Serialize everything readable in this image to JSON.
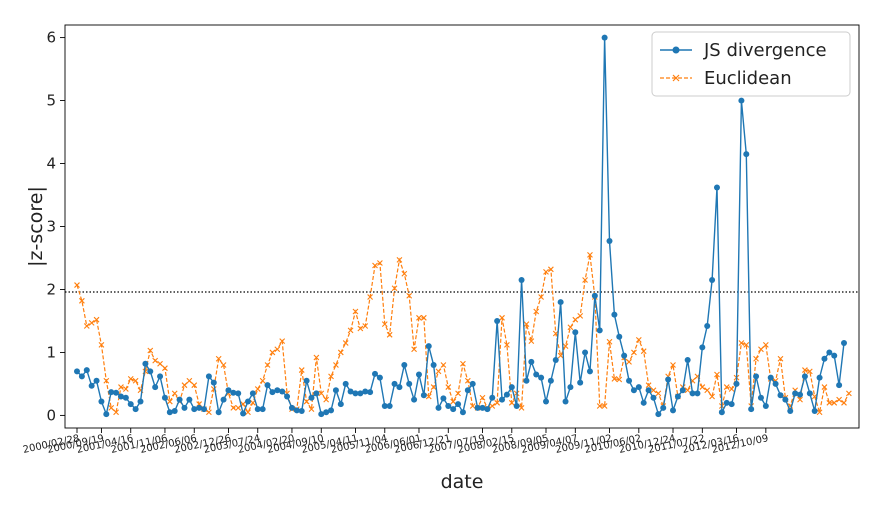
{
  "chart_data": {
    "type": "line",
    "xlabel": "date",
    "ylabel": "|z-score|",
    "ylim": [
      -0.2,
      6.2
    ],
    "yticks": [
      0,
      1,
      2,
      3,
      4,
      5,
      6
    ],
    "threshold": 1.96,
    "legend_position": "top-right",
    "xticks": [
      {
        "i": 0,
        "label": "2000/02/28"
      },
      {
        "i": 5,
        "label": "2000/09/19"
      },
      {
        "i": 11,
        "label": "2001/04/16"
      },
      {
        "i": 18,
        "label": "2001/11/06"
      },
      {
        "i": 24,
        "label": "2002/06/06"
      },
      {
        "i": 31,
        "label": "2002/12/26"
      },
      {
        "i": 37,
        "label": "2003/07/24"
      },
      {
        "i": 44,
        "label": "2004/02/20"
      },
      {
        "i": 50,
        "label": "2004/09/10"
      },
      {
        "i": 57,
        "label": "2005/04/11"
      },
      {
        "i": 63,
        "label": "2005/11/04"
      },
      {
        "i": 70,
        "label": "2006/06/01"
      },
      {
        "i": 76,
        "label": "2006/12/21"
      },
      {
        "i": 83,
        "label": "2007/07/19"
      },
      {
        "i": 89,
        "label": "2008/02/15"
      },
      {
        "i": 96,
        "label": "2008/09/05"
      },
      {
        "i": 102,
        "label": "2009/04/07"
      },
      {
        "i": 109,
        "label": "2009/11/02"
      },
      {
        "i": 115,
        "label": "2010/06/02"
      },
      {
        "i": 122,
        "label": "2010/12/24"
      },
      {
        "i": 128,
        "label": "2011/07/22"
      },
      {
        "i": 135,
        "label": "2012/03/16"
      },
      {
        "i": 141,
        "label": "2012/10/09"
      }
    ],
    "series": [
      {
        "name": "JS divergence",
        "color": "#1f77b4",
        "marker": "circle",
        "linestyle": "solid",
        "values": [
          0.7,
          0.62,
          0.72,
          0.47,
          0.55,
          0.22,
          0.02,
          0.37,
          0.36,
          0.3,
          0.28,
          0.18,
          0.1,
          0.22,
          0.82,
          0.7,
          0.45,
          0.62,
          0.28,
          0.05,
          0.07,
          0.25,
          0.12,
          0.25,
          0.1,
          0.12,
          0.1,
          0.62,
          0.52,
          0.05,
          0.25,
          0.4,
          0.36,
          0.35,
          0.03,
          0.22,
          0.35,
          0.1,
          0.1,
          0.48,
          0.37,
          0.4,
          0.38,
          0.3,
          0.12,
          0.08,
          0.07,
          0.55,
          0.28,
          0.35,
          0.02,
          0.05,
          0.08,
          0.4,
          0.18,
          0.5,
          0.38,
          0.35,
          0.35,
          0.38,
          0.37,
          0.66,
          0.6,
          0.15,
          0.15,
          0.5,
          0.45,
          0.8,
          0.5,
          0.25,
          0.65,
          0.32,
          1.1,
          0.8,
          0.12,
          0.27,
          0.15,
          0.1,
          0.18,
          0.05,
          0.4,
          0.5,
          0.12,
          0.12,
          0.1,
          0.28,
          1.5,
          0.25,
          0.33,
          0.45,
          0.15,
          2.15,
          0.55,
          0.85,
          0.65,
          0.6,
          0.22,
          0.55,
          0.88,
          1.8,
          0.22,
          0.45,
          1.32,
          0.52,
          1.0,
          0.7,
          1.9,
          1.35,
          6.0,
          2.77,
          1.6,
          1.25,
          0.95,
          0.55,
          0.4,
          0.45,
          0.2,
          0.4,
          0.28,
          0.02,
          0.12,
          0.57,
          0.08,
          0.3,
          0.4,
          0.88,
          0.35,
          0.35,
          1.08,
          1.42,
          2.15,
          3.62,
          0.05,
          0.2,
          0.18,
          0.5,
          5.0,
          4.15,
          0.1,
          0.62,
          0.28,
          0.15,
          0.6,
          0.5,
          0.32,
          0.25,
          0.07,
          0.35,
          0.33,
          0.62,
          0.35,
          0.07,
          0.6,
          0.9,
          1.0,
          0.95,
          0.48,
          1.15
        ]
      },
      {
        "name": "Euclidean",
        "color": "#ff7f0e",
        "marker": "x",
        "linestyle": "dashed",
        "values": [
          2.07,
          1.82,
          1.42,
          1.47,
          1.52,
          1.12,
          0.55,
          0.12,
          0.05,
          0.45,
          0.42,
          0.58,
          0.55,
          0.4,
          0.7,
          1.03,
          0.87,
          0.82,
          0.75,
          0.22,
          0.35,
          0.22,
          0.48,
          0.55,
          0.48,
          0.18,
          0.1,
          0.05,
          0.42,
          0.9,
          0.8,
          0.35,
          0.12,
          0.12,
          0.18,
          0.05,
          0.2,
          0.42,
          0.55,
          0.8,
          1.0,
          1.05,
          1.18,
          0.35,
          0.1,
          0.1,
          0.72,
          0.22,
          0.1,
          0.92,
          0.35,
          0.25,
          0.62,
          0.8,
          1.0,
          1.15,
          1.35,
          1.65,
          1.38,
          1.42,
          1.88,
          2.38,
          2.42,
          1.45,
          1.28,
          2.02,
          2.47,
          2.25,
          1.9,
          1.05,
          1.55,
          1.55,
          0.3,
          0.45,
          0.7,
          0.8,
          0.45,
          0.22,
          0.35,
          0.82,
          0.55,
          0.15,
          0.12,
          0.28,
          0.12,
          0.15,
          0.2,
          1.55,
          1.12,
          0.2,
          0.35,
          0.12,
          1.45,
          1.18,
          1.65,
          1.88,
          2.28,
          2.32,
          1.3,
          0.95,
          1.1,
          1.4,
          1.52,
          1.58,
          2.15,
          2.55,
          1.88,
          0.15,
          0.15,
          1.17,
          0.58,
          0.57,
          0.92,
          0.85,
          1.0,
          1.2,
          1.02,
          0.48,
          0.4,
          0.35,
          0.15,
          0.62,
          0.8,
          0.3,
          0.45,
          0.4,
          0.55,
          0.62,
          0.45,
          0.4,
          0.3,
          0.65,
          0.15,
          0.45,
          0.42,
          0.6,
          1.15,
          1.12,
          0.15,
          0.9,
          1.05,
          1.12,
          0.58,
          0.55,
          0.9,
          0.28,
          0.15,
          0.4,
          0.25,
          0.72,
          0.7,
          0.3,
          0.05,
          0.45,
          0.2,
          0.2,
          0.25,
          0.2,
          0.35
        ]
      }
    ]
  }
}
